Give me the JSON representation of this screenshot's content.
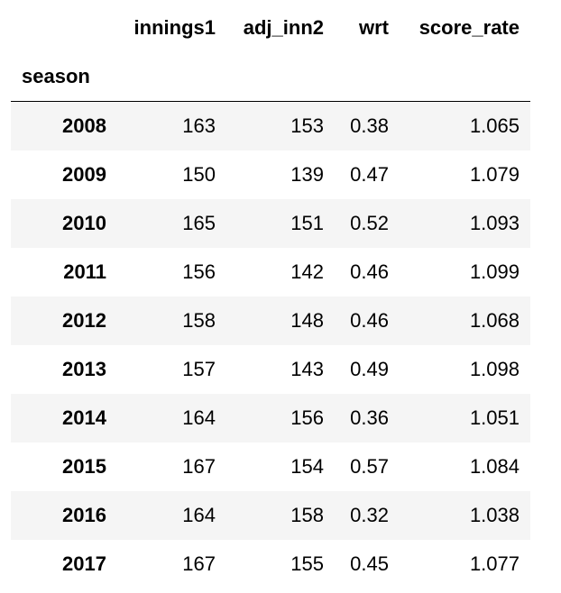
{
  "table": {
    "columns": [
      "innings1",
      "adj_inn2",
      "wrt",
      "score_rate"
    ],
    "index_name": "season",
    "rows": [
      {
        "season": "2008",
        "innings1": "163",
        "adj_inn2": "153",
        "wrt": "0.38",
        "score_rate": "1.065"
      },
      {
        "season": "2009",
        "innings1": "150",
        "adj_inn2": "139",
        "wrt": "0.47",
        "score_rate": "1.079"
      },
      {
        "season": "2010",
        "innings1": "165",
        "adj_inn2": "151",
        "wrt": "0.52",
        "score_rate": "1.093"
      },
      {
        "season": "2011",
        "innings1": "156",
        "adj_inn2": "142",
        "wrt": "0.46",
        "score_rate": "1.099"
      },
      {
        "season": "2012",
        "innings1": "158",
        "adj_inn2": "148",
        "wrt": "0.46",
        "score_rate": "1.068"
      },
      {
        "season": "2013",
        "innings1": "157",
        "adj_inn2": "143",
        "wrt": "0.49",
        "score_rate": "1.098"
      },
      {
        "season": "2014",
        "innings1": "164",
        "adj_inn2": "156",
        "wrt": "0.36",
        "score_rate": "1.051"
      },
      {
        "season": "2015",
        "innings1": "167",
        "adj_inn2": "154",
        "wrt": "0.57",
        "score_rate": "1.084"
      },
      {
        "season": "2016",
        "innings1": "164",
        "adj_inn2": "158",
        "wrt": "0.32",
        "score_rate": "1.038"
      },
      {
        "season": "2017",
        "innings1": "167",
        "adj_inn2": "155",
        "wrt": "0.45",
        "score_rate": "1.077"
      }
    ]
  },
  "colors": {
    "stripe": "#f5f5f5",
    "text": "#000000",
    "rule": "#000000"
  }
}
